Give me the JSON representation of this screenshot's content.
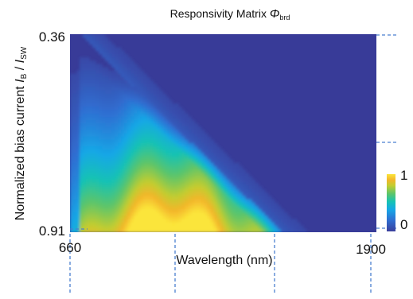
{
  "chart_data": {
    "type": "heatmap",
    "title": "Responsivity Matrix",
    "title_symbol": "Φ",
    "title_subscript": "brd",
    "xlabel": "Wavelength (nm)",
    "ylabel_main": "Normalized bias current ",
    "ylabel_symbol": "I",
    "ylabel_sub_b": "B",
    "ylabel_sep": " / ",
    "ylabel_sub_sw": "SW",
    "x_range": [
      660,
      1900
    ],
    "y_range": [
      0.36,
      0.91
    ],
    "x_tick_labels": [
      "660",
      "1900"
    ],
    "y_tick_labels": [
      "0.36",
      "0.91"
    ],
    "z_range": [
      0,
      1
    ],
    "colorbar_labels": [
      "1",
      "0"
    ],
    "colormap": [
      "#3b3f9c",
      "#2f6fd2",
      "#16a7e6",
      "#17c2b4",
      "#5dc56a",
      "#c2cd30",
      "#f3b62b",
      "#fbe53a"
    ],
    "background_color": "#383b98",
    "peak_wavelength_nm": 1060,
    "peak_bias": 0.87,
    "dashed_marker_color": "#4a7fd0"
  }
}
